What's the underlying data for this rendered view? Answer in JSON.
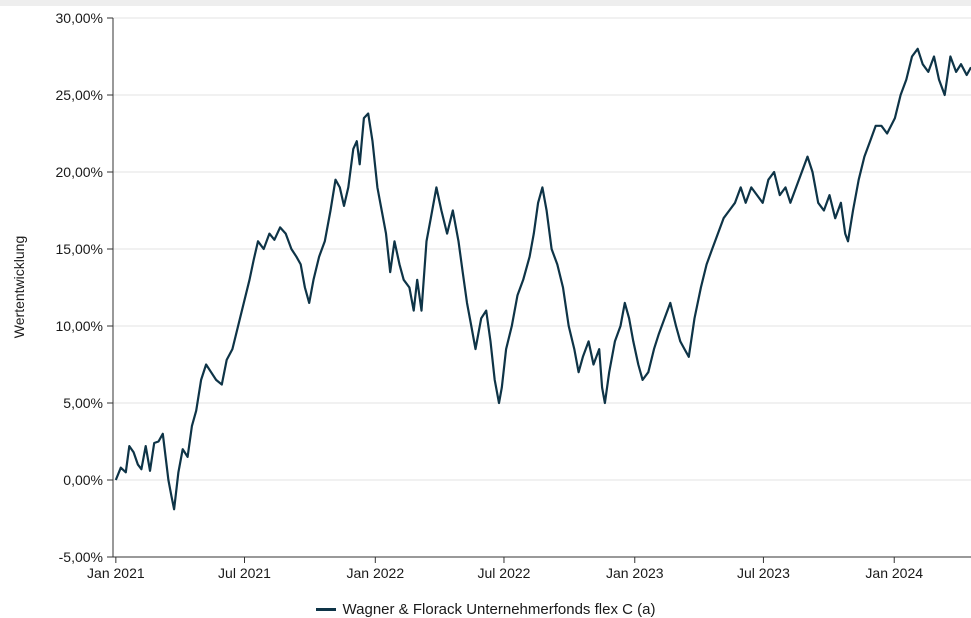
{
  "chart_data": {
    "type": "line",
    "title": "",
    "xlabel": "",
    "ylabel": "Wertentwicklung",
    "x_range": [
      "2020-12-28",
      "2024-04-18"
    ],
    "ylim": [
      -5,
      30
    ],
    "y_ticks": [
      -5,
      0,
      5,
      10,
      15,
      20,
      25,
      30
    ],
    "y_tick_labels": [
      "-5,00%",
      "0,00%",
      "5,00%",
      "10,00%",
      "15,00%",
      "20,00%",
      "25,00%",
      "30,00%"
    ],
    "x_ticks": [
      "2021-01-01",
      "2021-07-01",
      "2022-01-01",
      "2022-07-01",
      "2023-01-01",
      "2023-07-01",
      "2024-01-01"
    ],
    "x_tick_labels": [
      "Jan 2021",
      "Jul 2021",
      "Jan 2022",
      "Jul 2022",
      "Jan 2023",
      "Jul 2023",
      "Jan 2024"
    ],
    "grid": "horizontal",
    "legend_position": "bottom-center",
    "series": [
      {
        "name": "Wagner & Florack Unternehmerfonds flex C (a)",
        "color": "#0e3447",
        "points": [
          [
            "2021-01-01",
            0.0
          ],
          [
            "2021-01-08",
            0.8
          ],
          [
            "2021-01-15",
            0.5
          ],
          [
            "2021-01-20",
            2.2
          ],
          [
            "2021-01-26",
            1.8
          ],
          [
            "2021-02-01",
            1.0
          ],
          [
            "2021-02-06",
            0.7
          ],
          [
            "2021-02-12",
            2.2
          ],
          [
            "2021-02-18",
            0.6
          ],
          [
            "2021-02-24",
            2.4
          ],
          [
            "2021-03-02",
            2.5
          ],
          [
            "2021-03-08",
            3.0
          ],
          [
            "2021-03-12",
            1.5
          ],
          [
            "2021-03-16",
            0.0
          ],
          [
            "2021-03-20",
            -1.0
          ],
          [
            "2021-03-24",
            -1.9
          ],
          [
            "2021-03-30",
            0.5
          ],
          [
            "2021-04-05",
            2.0
          ],
          [
            "2021-04-12",
            1.5
          ],
          [
            "2021-04-18",
            3.5
          ],
          [
            "2021-04-24",
            4.5
          ],
          [
            "2021-05-01",
            6.5
          ],
          [
            "2021-05-08",
            7.5
          ],
          [
            "2021-05-15",
            7.0
          ],
          [
            "2021-05-22",
            6.5
          ],
          [
            "2021-05-30",
            6.2
          ],
          [
            "2021-06-06",
            7.8
          ],
          [
            "2021-06-14",
            8.5
          ],
          [
            "2021-06-22",
            10.0
          ],
          [
            "2021-06-30",
            11.5
          ],
          [
            "2021-07-08",
            13.0
          ],
          [
            "2021-07-14",
            14.3
          ],
          [
            "2021-07-20",
            15.5
          ],
          [
            "2021-07-28",
            15.0
          ],
          [
            "2021-08-05",
            16.0
          ],
          [
            "2021-08-12",
            15.6
          ],
          [
            "2021-08-20",
            16.4
          ],
          [
            "2021-08-28",
            16.0
          ],
          [
            "2021-09-05",
            15.0
          ],
          [
            "2021-09-12",
            14.5
          ],
          [
            "2021-09-18",
            14.0
          ],
          [
            "2021-09-24",
            12.5
          ],
          [
            "2021-09-30",
            11.5
          ],
          [
            "2021-10-06",
            13.0
          ],
          [
            "2021-10-14",
            14.5
          ],
          [
            "2021-10-22",
            15.5
          ],
          [
            "2021-10-30",
            17.5
          ],
          [
            "2021-11-06",
            19.5
          ],
          [
            "2021-11-12",
            19.0
          ],
          [
            "2021-11-18",
            17.8
          ],
          [
            "2021-11-24",
            19.0
          ],
          [
            "2021-12-01",
            21.5
          ],
          [
            "2021-12-06",
            22.0
          ],
          [
            "2021-12-10",
            20.5
          ],
          [
            "2021-12-16",
            23.5
          ],
          [
            "2021-12-22",
            23.8
          ],
          [
            "2021-12-28",
            22.0
          ],
          [
            "2022-01-04",
            19.0
          ],
          [
            "2022-01-10",
            17.5
          ],
          [
            "2022-01-16",
            16.0
          ],
          [
            "2022-01-22",
            13.5
          ],
          [
            "2022-01-28",
            15.5
          ],
          [
            "2022-02-04",
            14.0
          ],
          [
            "2022-02-10",
            13.0
          ],
          [
            "2022-02-18",
            12.5
          ],
          [
            "2022-02-24",
            11.0
          ],
          [
            "2022-03-01",
            13.0
          ],
          [
            "2022-03-07",
            11.0
          ],
          [
            "2022-03-14",
            15.5
          ],
          [
            "2022-03-20",
            17.0
          ],
          [
            "2022-03-28",
            19.0
          ],
          [
            "2022-04-04",
            17.5
          ],
          [
            "2022-04-12",
            16.0
          ],
          [
            "2022-04-20",
            17.5
          ],
          [
            "2022-04-28",
            15.5
          ],
          [
            "2022-05-04",
            13.5
          ],
          [
            "2022-05-10",
            11.5
          ],
          [
            "2022-05-16",
            10.0
          ],
          [
            "2022-05-22",
            8.5
          ],
          [
            "2022-05-30",
            10.5
          ],
          [
            "2022-06-06",
            11.0
          ],
          [
            "2022-06-12",
            9.0
          ],
          [
            "2022-06-18",
            6.5
          ],
          [
            "2022-06-24",
            5.0
          ],
          [
            "2022-06-28",
            6.0
          ],
          [
            "2022-07-04",
            8.5
          ],
          [
            "2022-07-12",
            10.0
          ],
          [
            "2022-07-20",
            12.0
          ],
          [
            "2022-07-28",
            13.0
          ],
          [
            "2022-08-06",
            14.5
          ],
          [
            "2022-08-12",
            16.0
          ],
          [
            "2022-08-18",
            18.0
          ],
          [
            "2022-08-24",
            19.0
          ],
          [
            "2022-08-30",
            17.5
          ],
          [
            "2022-09-06",
            15.0
          ],
          [
            "2022-09-14",
            14.0
          ],
          [
            "2022-09-22",
            12.5
          ],
          [
            "2022-09-30",
            10.0
          ],
          [
            "2022-10-08",
            8.5
          ],
          [
            "2022-10-14",
            7.0
          ],
          [
            "2022-10-20",
            8.0
          ],
          [
            "2022-10-28",
            9.0
          ],
          [
            "2022-11-04",
            7.5
          ],
          [
            "2022-11-12",
            8.5
          ],
          [
            "2022-11-16",
            6.0
          ],
          [
            "2022-11-20",
            5.0
          ],
          [
            "2022-11-26",
            7.0
          ],
          [
            "2022-12-04",
            9.0
          ],
          [
            "2022-12-12",
            10.0
          ],
          [
            "2022-12-18",
            11.5
          ],
          [
            "2022-12-24",
            10.5
          ],
          [
            "2022-12-30",
            9.0
          ],
          [
            "2023-01-06",
            7.5
          ],
          [
            "2023-01-12",
            6.5
          ],
          [
            "2023-01-20",
            7.0
          ],
          [
            "2023-01-28",
            8.5
          ],
          [
            "2023-02-04",
            9.5
          ],
          [
            "2023-02-12",
            10.5
          ],
          [
            "2023-02-20",
            11.5
          ],
          [
            "2023-02-28",
            10.0
          ],
          [
            "2023-03-06",
            9.0
          ],
          [
            "2023-03-12",
            8.5
          ],
          [
            "2023-03-18",
            8.0
          ],
          [
            "2023-03-26",
            10.5
          ],
          [
            "2023-04-04",
            12.5
          ],
          [
            "2023-04-12",
            14.0
          ],
          [
            "2023-04-20",
            15.0
          ],
          [
            "2023-04-28",
            16.0
          ],
          [
            "2023-05-06",
            17.0
          ],
          [
            "2023-05-14",
            17.5
          ],
          [
            "2023-05-22",
            18.0
          ],
          [
            "2023-05-30",
            19.0
          ],
          [
            "2023-06-06",
            18.0
          ],
          [
            "2023-06-14",
            19.0
          ],
          [
            "2023-06-22",
            18.5
          ],
          [
            "2023-06-30",
            18.0
          ],
          [
            "2023-07-08",
            19.5
          ],
          [
            "2023-07-16",
            20.0
          ],
          [
            "2023-07-24",
            18.5
          ],
          [
            "2023-08-01",
            19.0
          ],
          [
            "2023-08-08",
            18.0
          ],
          [
            "2023-08-16",
            19.0
          ],
          [
            "2023-08-24",
            20.0
          ],
          [
            "2023-09-01",
            21.0
          ],
          [
            "2023-09-08",
            20.0
          ],
          [
            "2023-09-16",
            18.0
          ],
          [
            "2023-09-24",
            17.5
          ],
          [
            "2023-10-02",
            18.5
          ],
          [
            "2023-10-10",
            17.0
          ],
          [
            "2023-10-18",
            18.0
          ],
          [
            "2023-10-24",
            16.0
          ],
          [
            "2023-10-28",
            15.5
          ],
          [
            "2023-11-04",
            17.5
          ],
          [
            "2023-11-12",
            19.5
          ],
          [
            "2023-11-20",
            21.0
          ],
          [
            "2023-11-28",
            22.0
          ],
          [
            "2023-12-06",
            23.0
          ],
          [
            "2023-12-14",
            23.0
          ],
          [
            "2023-12-22",
            22.5
          ],
          [
            "2024-01-02",
            23.5
          ],
          [
            "2024-01-10",
            25.0
          ],
          [
            "2024-01-18",
            26.0
          ],
          [
            "2024-01-26",
            27.5
          ],
          [
            "2024-02-03",
            28.0
          ],
          [
            "2024-02-10",
            27.0
          ],
          [
            "2024-02-18",
            26.5
          ],
          [
            "2024-02-26",
            27.5
          ],
          [
            "2024-03-04",
            26.0
          ],
          [
            "2024-03-12",
            25.0
          ],
          [
            "2024-03-20",
            27.5
          ],
          [
            "2024-03-28",
            26.5
          ],
          [
            "2024-04-04",
            27.0
          ],
          [
            "2024-04-12",
            26.3
          ],
          [
            "2024-04-18",
            26.8
          ]
        ]
      }
    ]
  }
}
